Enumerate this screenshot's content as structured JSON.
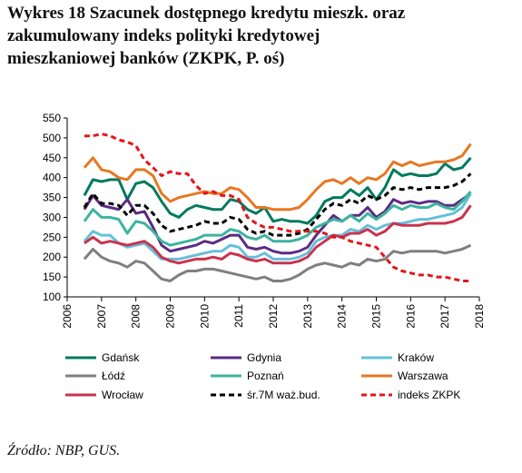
{
  "title_lines": [
    "Wykres 18 Szacunek dostępnego kredytu mieszk. oraz",
    "zakumulowany indeks polityki kredytowej",
    "mieszkaniowej banków (ZKPK, P. oś)"
  ],
  "source": "Źródło: NBP, GUS.",
  "chart_data": {
    "type": "line",
    "title": "Wykres 18 Szacunek dostępnego kredytu mieszk. oraz zakumulowany indeks polityki kredytowej mieszkaniowej banków (ZKPK, P. oś)",
    "xlabel": "",
    "ylabel": "",
    "ylim": [
      100,
      550
    ],
    "yticks": [
      100,
      150,
      200,
      250,
      300,
      350,
      400,
      450,
      500,
      550
    ],
    "x_start": 2006.5,
    "x_step": 0.25,
    "xticks": [
      "2006",
      "2007",
      "2008",
      "2009",
      "2010",
      "2011",
      "2012",
      "2013",
      "2014",
      "2015",
      "2016",
      "2017",
      "2018"
    ],
    "grid": false,
    "legend_position": "bottom",
    "series": [
      {
        "name": "Gdańsk",
        "color": "#007a5e",
        "dash": "solid",
        "values": [
          355,
          395,
          390,
          395,
          395,
          345,
          385,
          390,
          375,
          340,
          310,
          300,
          320,
          330,
          325,
          320,
          320,
          345,
          340,
          320,
          310,
          325,
          290,
          295,
          290,
          290,
          285,
          305,
          340,
          350,
          350,
          370,
          355,
          375,
          345,
          375,
          420,
          405,
          410,
          405,
          405,
          410,
          435,
          420,
          425,
          450
        ]
      },
      {
        "name": "Gdynia",
        "color": "#5b2c83",
        "dash": "solid",
        "values": [
          320,
          355,
          330,
          325,
          320,
          345,
          310,
          315,
          275,
          230,
          215,
          220,
          225,
          230,
          240,
          235,
          245,
          255,
          255,
          225,
          220,
          225,
          215,
          210,
          210,
          215,
          225,
          255,
          280,
          305,
          290,
          305,
          305,
          325,
          300,
          315,
          345,
          335,
          340,
          335,
          340,
          340,
          330,
          330,
          345,
          360
        ]
      },
      {
        "name": "Kraków",
        "color": "#66bfda",
        "dash": "solid",
        "values": [
          240,
          265,
          255,
          255,
          235,
          225,
          230,
          235,
          215,
          195,
          195,
          195,
          200,
          205,
          210,
          215,
          215,
          230,
          225,
          200,
          200,
          210,
          195,
          195,
          195,
          200,
          210,
          240,
          250,
          255,
          255,
          270,
          265,
          280,
          270,
          280,
          285,
          285,
          290,
          295,
          295,
          300,
          305,
          310,
          325,
          360
        ]
      },
      {
        "name": "Łódź",
        "color": "#7f7f7f",
        "dash": "solid",
        "values": [
          195,
          220,
          200,
          190,
          185,
          175,
          190,
          185,
          165,
          145,
          140,
          155,
          165,
          165,
          170,
          170,
          165,
          160,
          155,
          150,
          145,
          150,
          140,
          140,
          145,
          155,
          170,
          180,
          185,
          180,
          175,
          185,
          180,
          195,
          190,
          195,
          215,
          210,
          215,
          215,
          215,
          215,
          210,
          215,
          220,
          230
        ]
      },
      {
        "name": "Poznań",
        "color": "#3cb4a0",
        "dash": "solid",
        "values": [
          290,
          320,
          300,
          300,
          295,
          260,
          290,
          285,
          265,
          240,
          230,
          235,
          240,
          245,
          255,
          255,
          255,
          270,
          265,
          250,
          245,
          255,
          240,
          240,
          240,
          245,
          255,
          275,
          285,
          295,
          290,
          305,
          290,
          310,
          295,
          310,
          330,
          320,
          330,
          325,
          325,
          335,
          325,
          320,
          340,
          365
        ]
      },
      {
        "name": "Warszawa",
        "color": "#e87722",
        "dash": "solid",
        "values": [
          425,
          450,
          420,
          415,
          400,
          395,
          420,
          420,
          405,
          360,
          340,
          350,
          355,
          360,
          365,
          360,
          360,
          375,
          370,
          350,
          325,
          325,
          320,
          320,
          320,
          325,
          345,
          370,
          390,
          395,
          385,
          400,
          385,
          400,
          395,
          410,
          440,
          430,
          440,
          430,
          435,
          440,
          440,
          445,
          455,
          485
        ]
      },
      {
        "name": "Wrocław",
        "color": "#c9334d",
        "dash": "solid",
        "values": [
          235,
          250,
          235,
          240,
          235,
          230,
          235,
          240,
          225,
          200,
          190,
          185,
          190,
          195,
          195,
          200,
          195,
          210,
          205,
          195,
          190,
          195,
          185,
          185,
          185,
          190,
          200,
          225,
          240,
          255,
          250,
          260,
          260,
          270,
          255,
          265,
          285,
          280,
          280,
          280,
          285,
          285,
          285,
          290,
          300,
          330
        ]
      },
      {
        "name": "śr.7M waż.bud.",
        "color": "#000000",
        "dash": "dashed",
        "values": [
          325,
          360,
          335,
          335,
          330,
          305,
          330,
          330,
          310,
          280,
          265,
          270,
          275,
          280,
          290,
          285,
          285,
          300,
          295,
          270,
          260,
          265,
          255,
          255,
          255,
          260,
          270,
          295,
          320,
          335,
          330,
          345,
          335,
          355,
          345,
          355,
          375,
          370,
          375,
          370,
          375,
          375,
          375,
          380,
          390,
          410
        ]
      },
      {
        "name": "indeks ZKPK",
        "color": "#e3151a",
        "dash": "dashed",
        "values": [
          505,
          505,
          510,
          505,
          495,
          490,
          480,
          445,
          425,
          405,
          415,
          410,
          410,
          380,
          360,
          365,
          355,
          355,
          345,
          300,
          285,
          275,
          275,
          270,
          265,
          265,
          265,
          265,
          260,
          250,
          250,
          240,
          235,
          230,
          225,
          200,
          175,
          165,
          160,
          155,
          155,
          150,
          150,
          145,
          140,
          140
        ]
      }
    ]
  }
}
